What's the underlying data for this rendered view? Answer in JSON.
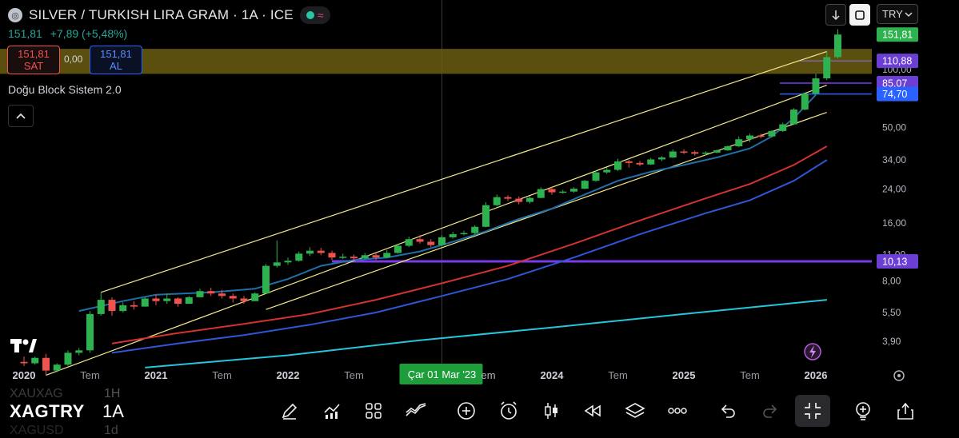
{
  "header": {
    "title": "SILVER / TURKISH LIRA GRAM · 1A · ICE",
    "last_price": "151,81",
    "change": "+7,89 (+5,48%)",
    "sell_price": "151,81",
    "sell_label": "SAT",
    "spread": "0,00",
    "buy_price": "151,81",
    "buy_label": "AL",
    "indicator_name": "Doğu Block Sistem 2.0",
    "currency": "TRY"
  },
  "bottom_bar": {
    "symbol": "XAGTRY",
    "symbol_above": "XAUXAG",
    "symbol_below": "XAGUSD",
    "timeframe": "1A",
    "timeframe_above": "1H",
    "timeframe_below": "1d"
  },
  "colors": {
    "up": "#2db24f",
    "down": "#ef5350",
    "channel": "#f4e98a",
    "ma_fast": "#1f6fa8",
    "ma_red": "#d2332f",
    "ma_blue": "#2f56d6",
    "ma_cyan": "#26c6da",
    "support": "#7c3aed",
    "zone": "#6b5d12"
  },
  "chart_data": {
    "type": "candlestick",
    "title": "SILVER / TURKISH LIRA GRAM · 1A · ICE",
    "y_scale": "log",
    "y_ticks": [
      "3,90",
      "5,50",
      "8,00",
      "11,00",
      "16,00",
      "24,00",
      "34,00",
      "50,00",
      "100,00"
    ],
    "x_ticks": [
      "2020",
      "Tem",
      "2021",
      "Tem",
      "2022",
      "Tem",
      "Çar 01 Mar '23",
      "2024",
      "Tem",
      "2025",
      "Tem",
      "2026"
    ],
    "price_labels": [
      {
        "value": "151,81",
        "color": "#2db24f"
      },
      {
        "value": "110,88",
        "color": "#6b3fd4"
      },
      {
        "value": "85,07",
        "color": "#6b3fd4"
      },
      {
        "value": "74,70",
        "color": "#2962ff"
      },
      {
        "value": "10,13",
        "color": "#6b3fd4"
      }
    ],
    "crosshair_date": "Çar 01 Mar '23",
    "horizontal_levels": [
      110.88,
      85.07,
      74.7,
      10.13
    ],
    "zone": [
      95,
      128
    ],
    "channel_upper": {
      "start": [
        "2020-08",
        7.0
      ],
      "end": [
        "2026-02",
        124
      ]
    },
    "channel_mid": {
      "start": [
        "2020-03",
        2.6
      ],
      "end": [
        "2026-02",
        83
      ]
    },
    "channel_lower": {
      "start": [
        "2021-11",
        5.7
      ],
      "end": [
        "2026-02",
        60
      ]
    },
    "ma_fast": [
      [
        "2020-06",
        5.6
      ],
      [
        "2020-10",
        6.3
      ],
      [
        "2021-01",
        6.8
      ],
      [
        "2021-06",
        7.0
      ],
      [
        "2021-10",
        7.3
      ],
      [
        "2022-01",
        8.2
      ],
      [
        "2022-04",
        9.6
      ],
      [
        "2022-07",
        10.3
      ],
      [
        "2022-10",
        10.6
      ],
      [
        "2023-01",
        11.4
      ],
      [
        "2023-04",
        12.8
      ],
      [
        "2023-07",
        14.5
      ],
      [
        "2023-10",
        16.8
      ],
      [
        "2024-01",
        19.0
      ],
      [
        "2024-04",
        22.5
      ],
      [
        "2024-07",
        26.5
      ],
      [
        "2024-10",
        29.5
      ],
      [
        "2025-01",
        32.0
      ],
      [
        "2025-04",
        35.0
      ],
      [
        "2025-07",
        39.0
      ],
      [
        "2025-09",
        45.0
      ],
      [
        "2025-11",
        56.0
      ],
      [
        "2026-01",
        74.0
      ]
    ],
    "ma_red": [
      [
        "2020-09",
        3.8
      ],
      [
        "2021-03",
        4.3
      ],
      [
        "2021-09",
        4.8
      ],
      [
        "2022-03",
        5.4
      ],
      [
        "2022-09",
        6.4
      ],
      [
        "2023-03",
        7.8
      ],
      [
        "2023-09",
        9.6
      ],
      [
        "2024-03",
        12.5
      ],
      [
        "2024-09",
        16.5
      ],
      [
        "2025-03",
        21.5
      ],
      [
        "2025-07",
        25.5
      ],
      [
        "2025-11",
        32.0
      ],
      [
        "2026-02",
        40.0
      ]
    ],
    "ma_blue": [
      [
        "2020-09",
        3.4
      ],
      [
        "2021-03",
        3.8
      ],
      [
        "2021-09",
        4.2
      ],
      [
        "2022-03",
        4.75
      ],
      [
        "2022-09",
        5.5
      ],
      [
        "2023-03",
        6.7
      ],
      [
        "2023-09",
        8.2
      ],
      [
        "2024-03",
        10.6
      ],
      [
        "2024-09",
        14.0
      ],
      [
        "2025-03",
        18.0
      ],
      [
        "2025-07",
        21.0
      ],
      [
        "2025-11",
        26.5
      ],
      [
        "2026-02",
        34.0
      ]
    ],
    "ma_cyan": [
      [
        "2020-12",
        2.85
      ],
      [
        "2022-01",
        3.3
      ],
      [
        "2023-01",
        3.95
      ],
      [
        "2024-01",
        4.6
      ],
      [
        "2025-01",
        5.4
      ],
      [
        "2026-02",
        6.4
      ]
    ],
    "candles": [
      {
        "d": "2020-01",
        "o": 3.05,
        "h": 3.25,
        "c": 3.0,
        "l": 2.9
      },
      {
        "d": "2020-02",
        "o": 3.0,
        "h": 3.25,
        "c": 3.2,
        "l": 2.95
      },
      {
        "d": "2020-03",
        "o": 3.2,
        "h": 3.35,
        "c": 2.75,
        "l": 2.6
      },
      {
        "d": "2020-04",
        "o": 2.75,
        "h": 3.0,
        "c": 2.95,
        "l": 2.7
      },
      {
        "d": "2020-05",
        "o": 2.95,
        "h": 3.5,
        "c": 3.4,
        "l": 2.9
      },
      {
        "d": "2020-06",
        "o": 3.4,
        "h": 3.6,
        "c": 3.5,
        "l": 3.3
      },
      {
        "d": "2020-07",
        "o": 3.5,
        "h": 5.6,
        "c": 5.4,
        "l": 3.4
      },
      {
        "d": "2020-08",
        "o": 5.4,
        "h": 7.0,
        "c": 6.4,
        "l": 5.3
      },
      {
        "d": "2020-09",
        "o": 6.4,
        "h": 6.6,
        "c": 5.6,
        "l": 5.3
      },
      {
        "d": "2020-10",
        "o": 5.6,
        "h": 6.2,
        "c": 6.0,
        "l": 5.5
      },
      {
        "d": "2020-11",
        "o": 6.0,
        "h": 6.3,
        "c": 5.9,
        "l": 5.7
      },
      {
        "d": "2020-12",
        "o": 5.9,
        "h": 6.6,
        "c": 6.5,
        "l": 5.9
      },
      {
        "d": "2021-01",
        "o": 6.5,
        "h": 6.8,
        "c": 6.3,
        "l": 6.0
      },
      {
        "d": "2021-02",
        "o": 6.3,
        "h": 6.9,
        "c": 6.5,
        "l": 6.1
      },
      {
        "d": "2021-03",
        "o": 6.5,
        "h": 6.6,
        "c": 6.1,
        "l": 5.9
      },
      {
        "d": "2021-04",
        "o": 6.1,
        "h": 6.7,
        "c": 6.6,
        "l": 6.1
      },
      {
        "d": "2021-05",
        "o": 6.6,
        "h": 7.3,
        "c": 7.1,
        "l": 6.6
      },
      {
        "d": "2021-06",
        "o": 7.1,
        "h": 7.4,
        "c": 6.9,
        "l": 6.7
      },
      {
        "d": "2021-07",
        "o": 6.9,
        "h": 7.2,
        "c": 6.7,
        "l": 6.5
      },
      {
        "d": "2021-08",
        "o": 6.7,
        "h": 6.9,
        "c": 6.5,
        "l": 6.2
      },
      {
        "d": "2021-09",
        "o": 6.5,
        "h": 6.7,
        "c": 6.3,
        "l": 6.1
      },
      {
        "d": "2021-10",
        "o": 6.3,
        "h": 7.0,
        "c": 6.9,
        "l": 6.3
      },
      {
        "d": "2021-11",
        "o": 6.9,
        "h": 9.8,
        "c": 9.6,
        "l": 6.9
      },
      {
        "d": "2021-12",
        "o": 9.6,
        "h": 13.0,
        "c": 10.0,
        "l": 9.4
      },
      {
        "d": "2022-01",
        "o": 10.0,
        "h": 10.6,
        "c": 10.2,
        "l": 9.7
      },
      {
        "d": "2022-02",
        "o": 10.2,
        "h": 11.4,
        "c": 11.1,
        "l": 10.1
      },
      {
        "d": "2022-03",
        "o": 11.1,
        "h": 12.0,
        "c": 11.5,
        "l": 10.8
      },
      {
        "d": "2022-04",
        "o": 11.5,
        "h": 11.9,
        "c": 11.2,
        "l": 10.9
      },
      {
        "d": "2022-05",
        "o": 11.2,
        "h": 11.5,
        "c": 10.6,
        "l": 10.3
      },
      {
        "d": "2022-06",
        "o": 10.6,
        "h": 11.1,
        "c": 10.7,
        "l": 10.4
      },
      {
        "d": "2022-07",
        "o": 10.7,
        "h": 11.0,
        "c": 10.5,
        "l": 10.2
      },
      {
        "d": "2022-08",
        "o": 10.5,
        "h": 11.2,
        "c": 10.9,
        "l": 10.4
      },
      {
        "d": "2022-09",
        "o": 10.9,
        "h": 11.2,
        "c": 10.6,
        "l": 10.3
      },
      {
        "d": "2022-10",
        "o": 10.6,
        "h": 11.6,
        "c": 11.2,
        "l": 10.5
      },
      {
        "d": "2022-11",
        "o": 11.2,
        "h": 12.5,
        "c": 12.2,
        "l": 11.1
      },
      {
        "d": "2022-12",
        "o": 12.2,
        "h": 13.6,
        "c": 13.2,
        "l": 12.0
      },
      {
        "d": "2023-01",
        "o": 13.2,
        "h": 13.9,
        "c": 12.8,
        "l": 12.5
      },
      {
        "d": "2023-02",
        "o": 12.8,
        "h": 13.2,
        "c": 12.3,
        "l": 12.0
      },
      {
        "d": "2023-03",
        "o": 12.3,
        "h": 13.8,
        "c": 13.5,
        "l": 12.1
      },
      {
        "d": "2023-04",
        "o": 13.5,
        "h": 14.4,
        "c": 14.0,
        "l": 13.3
      },
      {
        "d": "2023-05",
        "o": 14.0,
        "h": 14.6,
        "c": 14.2,
        "l": 13.8
      },
      {
        "d": "2023-06",
        "o": 14.2,
        "h": 15.6,
        "c": 15.3,
        "l": 14.0
      },
      {
        "d": "2023-07",
        "o": 15.3,
        "h": 20.5,
        "c": 19.8,
        "l": 15.2
      },
      {
        "d": "2023-08",
        "o": 19.8,
        "h": 22.5,
        "c": 21.8,
        "l": 19.5
      },
      {
        "d": "2023-09",
        "o": 21.8,
        "h": 22.3,
        "c": 21.4,
        "l": 20.8
      },
      {
        "d": "2023-10",
        "o": 21.4,
        "h": 22.0,
        "c": 20.6,
        "l": 20.0
      },
      {
        "d": "2023-11",
        "o": 20.6,
        "h": 22.0,
        "c": 21.6,
        "l": 20.2
      },
      {
        "d": "2023-12",
        "o": 21.6,
        "h": 24.5,
        "c": 24.0,
        "l": 21.5
      },
      {
        "d": "2024-01",
        "o": 24.0,
        "h": 24.8,
        "c": 23.1,
        "l": 22.4
      },
      {
        "d": "2024-02",
        "o": 23.1,
        "h": 23.8,
        "c": 23.3,
        "l": 22.7
      },
      {
        "d": "2024-03",
        "o": 23.3,
        "h": 24.5,
        "c": 24.1,
        "l": 23.0
      },
      {
        "d": "2024-04",
        "o": 24.1,
        "h": 26.8,
        "c": 26.5,
        "l": 24.0
      },
      {
        "d": "2024-05",
        "o": 26.5,
        "h": 30.0,
        "c": 29.3,
        "l": 26.2
      },
      {
        "d": "2024-06",
        "o": 29.3,
        "h": 31.0,
        "c": 30.2,
        "l": 28.8
      },
      {
        "d": "2024-07",
        "o": 30.2,
        "h": 34.5,
        "c": 33.4,
        "l": 29.8
      },
      {
        "d": "2024-08",
        "o": 33.4,
        "h": 34.0,
        "c": 32.8,
        "l": 31.0
      },
      {
        "d": "2024-09",
        "o": 32.8,
        "h": 33.6,
        "c": 32.2,
        "l": 31.6
      },
      {
        "d": "2024-10",
        "o": 32.2,
        "h": 34.8,
        "c": 34.2,
        "l": 32.0
      },
      {
        "d": "2024-11",
        "o": 34.2,
        "h": 35.5,
        "c": 35.0,
        "l": 33.5
      },
      {
        "d": "2024-12",
        "o": 35.0,
        "h": 38.5,
        "c": 37.6,
        "l": 34.8
      },
      {
        "d": "2025-01",
        "o": 37.6,
        "h": 38.6,
        "c": 37.3,
        "l": 36.4
      },
      {
        "d": "2025-02",
        "o": 37.3,
        "h": 38.0,
        "c": 36.6,
        "l": 35.8
      },
      {
        "d": "2025-03",
        "o": 36.6,
        "h": 37.6,
        "c": 37.1,
        "l": 35.9
      },
      {
        "d": "2025-04",
        "o": 37.1,
        "h": 38.5,
        "c": 38.1,
        "l": 36.8
      },
      {
        "d": "2025-05",
        "o": 38.1,
        "h": 40.5,
        "c": 40.0,
        "l": 37.9
      },
      {
        "d": "2025-06",
        "o": 40.0,
        "h": 45.0,
        "c": 43.5,
        "l": 39.5
      },
      {
        "d": "2025-07",
        "o": 43.5,
        "h": 46.5,
        "c": 45.5,
        "l": 42.0
      },
      {
        "d": "2025-08",
        "o": 45.5,
        "h": 46.5,
        "c": 45.0,
        "l": 44.0
      },
      {
        "d": "2025-09",
        "o": 45.0,
        "h": 48.5,
        "c": 48.0,
        "l": 44.5
      },
      {
        "d": "2025-10",
        "o": 48.0,
        "h": 53.0,
        "c": 52.0,
        "l": 47.5
      },
      {
        "d": "2025-11",
        "o": 52.0,
        "h": 63.0,
        "c": 62.0,
        "l": 51.5
      },
      {
        "d": "2025-12",
        "o": 62.0,
        "h": 76.0,
        "c": 75.0,
        "l": 61.5
      },
      {
        "d": "2026-01",
        "o": 75.0,
        "h": 95.0,
        "c": 90.0,
        "l": 74.0
      },
      {
        "d": "2026-02",
        "o": 90.0,
        "h": 125.0,
        "c": 116.0,
        "l": 88.0
      },
      {
        "d": "2026-03",
        "o": 116.0,
        "h": 162.0,
        "c": 151.81,
        "l": 114.0
      }
    ]
  }
}
